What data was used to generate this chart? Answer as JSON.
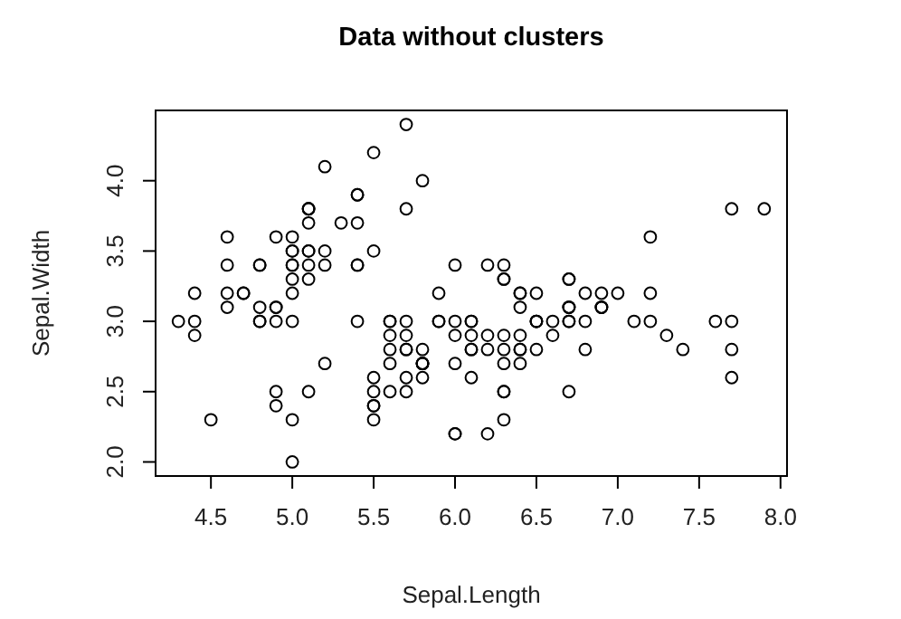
{
  "chart_data": {
    "type": "scatter",
    "title": "Data without clusters",
    "xlabel": "Sepal.Length",
    "ylabel": "Sepal.Width",
    "marker": "circle",
    "xlim": [
      4.16,
      8.04
    ],
    "ylim": [
      1.9,
      4.5
    ],
    "xticks": [
      4.5,
      {
        "value": 5,
        "label": "5.0"
      },
      5.5,
      {
        "value": 6,
        "label": "6.0"
      },
      6.5,
      {
        "value": 7,
        "label": "7.0"
      },
      7.5,
      {
        "value": 8,
        "label": "8.0"
      }
    ],
    "yticks": [
      {
        "value": 2,
        "label": "2.0"
      },
      2.5,
      {
        "value": 3,
        "label": "3.0"
      },
      3.5,
      {
        "value": 4,
        "label": "4.0"
      }
    ],
    "series": [
      {
        "color": "#000000",
        "x": [
          5.1,
          4.9,
          4.7,
          4.6,
          5.0,
          5.4,
          4.6,
          5.0,
          4.4,
          4.9,
          5.4,
          4.8,
          4.8,
          4.3,
          5.8,
          5.7,
          5.4,
          5.1,
          5.7,
          5.1,
          5.4,
          5.1,
          4.6,
          5.1,
          4.8,
          5.0,
          5.0,
          5.2,
          5.2,
          4.7,
          4.8,
          5.4,
          5.2,
          5.5,
          4.9,
          5.0,
          5.5,
          4.9,
          4.4,
          5.1,
          5.0,
          4.5,
          4.4,
          5.0,
          5.1,
          4.8,
          5.1,
          4.6,
          5.3,
          5.0,
          7.0,
          6.4,
          6.9,
          5.5,
          6.5,
          5.7,
          6.3,
          4.9,
          6.6,
          5.2,
          5.0,
          5.9,
          6.0,
          6.1,
          5.6,
          6.7,
          5.6,
          5.8,
          6.2,
          5.6,
          5.9,
          6.1,
          6.3,
          6.1,
          6.4,
          6.6,
          6.8,
          6.7,
          6.0,
          5.7,
          5.5,
          5.5,
          5.8,
          6.0,
          5.4,
          6.0,
          6.7,
          6.3,
          5.6,
          5.5,
          5.5,
          6.1,
          5.8,
          5.0,
          5.6,
          5.7,
          5.7,
          6.2,
          5.1,
          5.7,
          6.3,
          5.8,
          7.1,
          6.3,
          6.5,
          7.6,
          4.9,
          7.3,
          6.7,
          7.2,
          6.5,
          6.4,
          6.8,
          5.7,
          5.8,
          6.4,
          6.5,
          7.7,
          7.7,
          6.0,
          6.9,
          5.6,
          7.7,
          6.3,
          6.7,
          7.2,
          6.2,
          6.1,
          6.4,
          7.2,
          7.4,
          7.9,
          6.4,
          6.3,
          6.1,
          7.7,
          6.3,
          6.4,
          6.0,
          6.9,
          6.7,
          6.9,
          5.8,
          6.8,
          6.7,
          6.7,
          6.3,
          6.5,
          6.2,
          5.9
        ],
        "values": [
          3.5,
          3.0,
          3.2,
          3.1,
          3.6,
          3.9,
          3.4,
          3.4,
          2.9,
          3.1,
          3.7,
          3.4,
          3.0,
          3.0,
          4.0,
          4.4,
          3.9,
          3.5,
          3.8,
          3.8,
          3.4,
          3.7,
          3.6,
          3.3,
          3.4,
          3.0,
          3.4,
          3.5,
          3.4,
          3.2,
          3.1,
          3.4,
          4.1,
          4.2,
          3.1,
          3.2,
          3.5,
          3.6,
          3.0,
          3.4,
          3.5,
          2.3,
          3.2,
          3.5,
          3.8,
          3.0,
          3.8,
          3.2,
          3.7,
          3.3,
          3.2,
          3.2,
          3.1,
          2.3,
          2.8,
          2.8,
          3.3,
          2.4,
          2.9,
          2.7,
          2.0,
          3.0,
          2.2,
          2.9,
          2.9,
          3.1,
          3.0,
          2.7,
          2.2,
          2.5,
          3.2,
          2.8,
          2.5,
          2.8,
          2.9,
          3.0,
          2.8,
          3.0,
          2.9,
          2.6,
          2.4,
          2.4,
          2.7,
          2.7,
          3.0,
          3.4,
          3.1,
          2.3,
          3.0,
          2.5,
          2.6,
          3.0,
          2.6,
          2.3,
          2.7,
          3.0,
          2.9,
          2.9,
          2.5,
          2.8,
          3.3,
          2.7,
          3.0,
          2.9,
          3.0,
          3.0,
          2.5,
          2.9,
          2.5,
          3.6,
          3.2,
          2.7,
          3.0,
          2.5,
          2.8,
          3.2,
          3.0,
          3.8,
          2.6,
          2.2,
          3.2,
          2.8,
          2.8,
          2.7,
          3.3,
          3.2,
          2.8,
          3.0,
          2.8,
          3.0,
          2.8,
          3.8,
          2.8,
          2.8,
          2.6,
          3.0,
          3.4,
          3.1,
          3.0,
          3.1,
          3.1,
          3.1,
          2.7,
          3.2,
          3.3,
          3.0,
          2.5,
          3.0,
          3.4,
          3.0
        ]
      }
    ]
  }
}
